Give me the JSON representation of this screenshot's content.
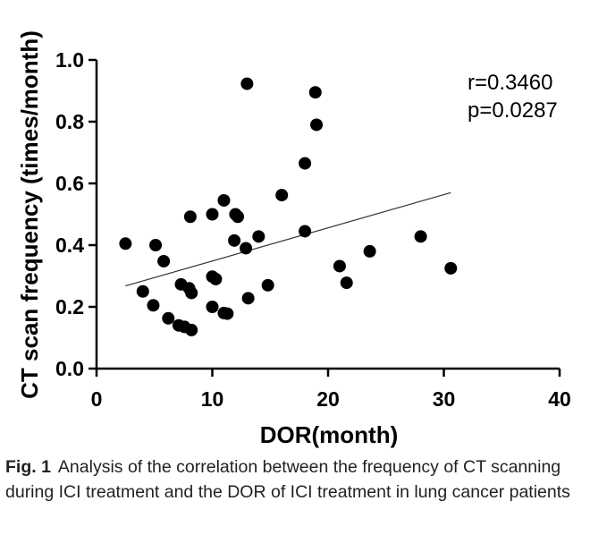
{
  "chart_data": {
    "type": "scatter",
    "xlabel": "DOR(month)",
    "ylabel": "CT scan frequency (times/month)",
    "xlim": [
      0,
      40
    ],
    "ylim": [
      0.0,
      1.0
    ],
    "xticks": [
      "0",
      "10",
      "20",
      "30",
      "40"
    ],
    "yticks": [
      "0.0",
      "0.2",
      "0.4",
      "0.6",
      "0.8",
      "1.0"
    ],
    "grid": false,
    "marker_color": "#000000",
    "series": [
      {
        "points": [
          [
            2.5,
            0.405
          ],
          [
            4.0,
            0.25
          ],
          [
            4.9,
            0.205
          ],
          [
            5.1,
            0.4
          ],
          [
            5.8,
            0.348
          ],
          [
            6.2,
            0.163
          ],
          [
            7.1,
            0.14
          ],
          [
            7.3,
            0.273
          ],
          [
            7.6,
            0.135
          ],
          [
            8.0,
            0.26
          ],
          [
            8.1,
            0.492
          ],
          [
            8.2,
            0.245
          ],
          [
            8.2,
            0.125
          ],
          [
            10.0,
            0.5
          ],
          [
            10.0,
            0.298
          ],
          [
            10.0,
            0.2
          ],
          [
            10.3,
            0.29
          ],
          [
            11.0,
            0.545
          ],
          [
            11.0,
            0.18
          ],
          [
            11.3,
            0.178
          ],
          [
            11.9,
            0.415
          ],
          [
            12.0,
            0.5
          ],
          [
            12.2,
            0.492
          ],
          [
            12.9,
            0.39
          ],
          [
            13.0,
            0.923
          ],
          [
            13.1,
            0.228
          ],
          [
            14.0,
            0.428
          ],
          [
            14.8,
            0.27
          ],
          [
            16.0,
            0.562
          ],
          [
            18.0,
            0.665
          ],
          [
            18.0,
            0.445
          ],
          [
            18.9,
            0.895
          ],
          [
            19.0,
            0.79
          ],
          [
            21.0,
            0.332
          ],
          [
            21.6,
            0.278
          ],
          [
            23.6,
            0.38
          ],
          [
            28.0,
            0.428
          ],
          [
            30.6,
            0.325
          ]
        ]
      }
    ],
    "trendline": {
      "x": [
        2.5,
        30.6
      ],
      "y": [
        0.268,
        0.57
      ]
    },
    "annotations": [
      "r=0.3460",
      "p=0.0287"
    ]
  },
  "caption": {
    "label": "Fig. 1",
    "text": "Analysis of the correlation between the frequency of CT scanning during ICI treatment and the DOR of ICI treatment in lung cancer patients"
  }
}
